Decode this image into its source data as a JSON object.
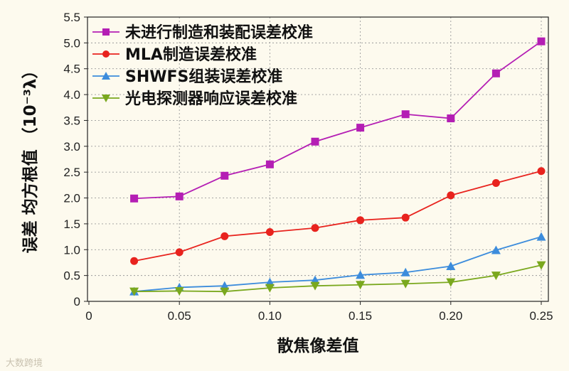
{
  "chart_data": {
    "type": "line",
    "xlabel": "散焦像差值",
    "ylabel": "误差 均方根值 （10⁻³λ）",
    "xlim": [
      0,
      0.255
    ],
    "ylim": [
      0,
      5.5
    ],
    "x_ticks": [
      "0",
      "0.05",
      "0.10",
      "0.15",
      "0.20",
      "0.25"
    ],
    "y_ticks": [
      "0",
      "0.5",
      "1.0",
      "1.5",
      "2.0",
      "2.5",
      "3.0",
      "3.5",
      "4.0",
      "4.5",
      "5.0",
      "5.5"
    ],
    "grid": true,
    "legend_position": "top-left",
    "x": [
      0.025,
      0.05,
      0.075,
      0.1,
      0.125,
      0.15,
      0.175,
      0.2,
      0.225,
      0.25
    ],
    "series": [
      {
        "name": "未进行制造和装配误差校准",
        "color": "#b41eb4",
        "marker": "square",
        "values": [
          1.99,
          2.03,
          2.43,
          2.65,
          3.09,
          3.36,
          3.62,
          3.54,
          4.41,
          5.03
        ]
      },
      {
        "name": "MLA制造误差校准",
        "color": "#e8231e",
        "marker": "circle",
        "values": [
          0.78,
          0.95,
          1.26,
          1.34,
          1.42,
          1.57,
          1.62,
          2.05,
          2.29,
          2.52
        ]
      },
      {
        "name": "SHWFS组装误差校准",
        "color": "#3c8cdc",
        "marker": "triangle-up",
        "values": [
          0.19,
          0.27,
          0.3,
          0.37,
          0.41,
          0.51,
          0.56,
          0.68,
          0.99,
          1.25
        ]
      },
      {
        "name": "光电探测器响应误差校准",
        "color": "#7aa81e",
        "marker": "triangle-down",
        "values": [
          0.19,
          0.2,
          0.19,
          0.26,
          0.3,
          0.32,
          0.34,
          0.37,
          0.5,
          0.7
        ]
      }
    ]
  },
  "watermark": "大数跨境"
}
